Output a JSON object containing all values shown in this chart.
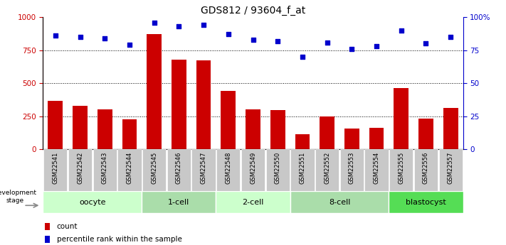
{
  "title": "GDS812 / 93604_f_at",
  "samples": [
    "GSM22541",
    "GSM22542",
    "GSM22543",
    "GSM22544",
    "GSM22545",
    "GSM22546",
    "GSM22547",
    "GSM22548",
    "GSM22549",
    "GSM22550",
    "GSM22551",
    "GSM22552",
    "GSM22553",
    "GSM22554",
    "GSM22555",
    "GSM22556",
    "GSM22557"
  ],
  "counts": [
    370,
    330,
    305,
    230,
    870,
    680,
    675,
    440,
    305,
    295,
    115,
    250,
    160,
    165,
    465,
    235,
    315
  ],
  "percentiles": [
    86,
    85,
    84,
    79,
    96,
    93,
    94,
    87,
    83,
    82,
    70,
    81,
    76,
    78,
    90,
    80,
    85
  ],
  "bar_color": "#cc0000",
  "dot_color": "#0000cc",
  "left_ylim": [
    0,
    1000
  ],
  "right_ylim": [
    0,
    100
  ],
  "left_yticks": [
    0,
    250,
    500,
    750,
    1000
  ],
  "right_yticks": [
    0,
    25,
    50,
    75,
    100
  ],
  "right_yticklabels": [
    "0",
    "25",
    "50",
    "75",
    "100%"
  ],
  "grid_lines": [
    250,
    500,
    750
  ],
  "stage_definitions": [
    {
      "label": "oocyte",
      "start": 0,
      "end": 3,
      "color": "#ccffcc"
    },
    {
      "label": "1-cell",
      "start": 4,
      "end": 6,
      "color": "#aaddaa"
    },
    {
      "label": "2-cell",
      "start": 7,
      "end": 9,
      "color": "#ccffcc"
    },
    {
      "label": "8-cell",
      "start": 10,
      "end": 13,
      "color": "#aaddaa"
    },
    {
      "label": "blastocyst",
      "start": 14,
      "end": 16,
      "color": "#55dd55"
    }
  ],
  "tick_bg_color": "#c8c8c8",
  "legend_count_label": "count",
  "legend_pct_label": "percentile rank within the sample",
  "dev_stage_label": "development stage"
}
